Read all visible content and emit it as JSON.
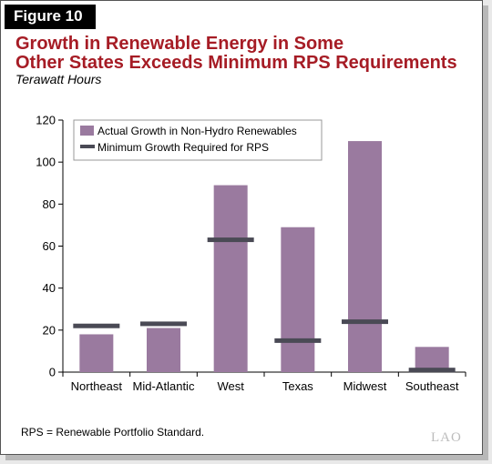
{
  "figure_label": "Figure 10",
  "title_line1": "Growth in Renewable Energy in Some",
  "title_line2": "Other States Exceeds Minimum RPS Requirements",
  "subtitle": "Terawatt Hours",
  "footnote": "RPS = Renewable Portfolio Standard.",
  "logo": "LAO",
  "colors": {
    "bar": "#9a7a9f",
    "marker": "#4a4a55",
    "title": "#a61c25"
  },
  "chart_data": {
    "type": "bar",
    "categories": [
      "Northeast",
      "Mid-Atlantic",
      "West",
      "Texas",
      "Midwest",
      "Southeast"
    ],
    "series": [
      {
        "name": "Actual Growth in Non-Hydro Renewables",
        "type": "bar",
        "values": [
          18,
          21,
          89,
          69,
          110,
          12
        ]
      },
      {
        "name": "Minimum Growth Required for RPS",
        "type": "marker",
        "values": [
          22,
          23,
          63,
          15,
          24,
          1
        ]
      }
    ],
    "ylim": [
      0,
      120
    ],
    "yticks": [
      0,
      20,
      40,
      60,
      80,
      100,
      120
    ],
    "grid": false,
    "legend": "top-left"
  }
}
